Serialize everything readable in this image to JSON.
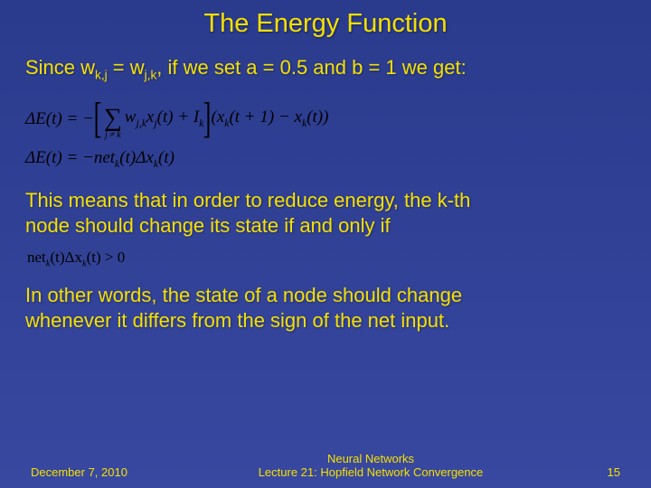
{
  "title": "The Energy Function",
  "line1_pre": "Since w",
  "line1_sub1": "k,j",
  "line1_mid1": " = w",
  "line1_sub2": "j,k",
  "line1_post": ", if we set a = 0.5 and b = 1 we get:",
  "eq1": {
    "lhs": "ΔE(t) = −",
    "sum_bottom": "j ≠ k",
    "term1_a": "w",
    "term1_sub": "j,k",
    "term1_b": "x",
    "term1_sub2": "j",
    "term1_c": "(t) + I",
    "term1_sub3": "k",
    "term2_a": "(x",
    "term2_sub1": "k",
    "term2_b": "(t + 1) − x",
    "term2_sub2": "k",
    "term2_c": "(t))"
  },
  "eq2": {
    "lhs": "ΔE(t) = −net",
    "sub1": "k",
    "mid": "(t)Δx",
    "sub2": "k",
    "post": "(t)"
  },
  "para2a": "This means that in order to reduce energy, the k-th",
  "para2b": "node should change its state if and only if",
  "eq3": {
    "a": "net",
    "sub1": "k",
    "b": "(t)Δx",
    "sub2": "k",
    "c": "(t) > 0"
  },
  "para3a": "In other words, the state of a node should change",
  "para3b": "whenever it differs from the sign of the net input.",
  "footer": {
    "date": "December 7, 2010",
    "center1": "Neural Networks",
    "center2": "Lecture 21: Hopfield Network Convergence",
    "page": "15"
  }
}
